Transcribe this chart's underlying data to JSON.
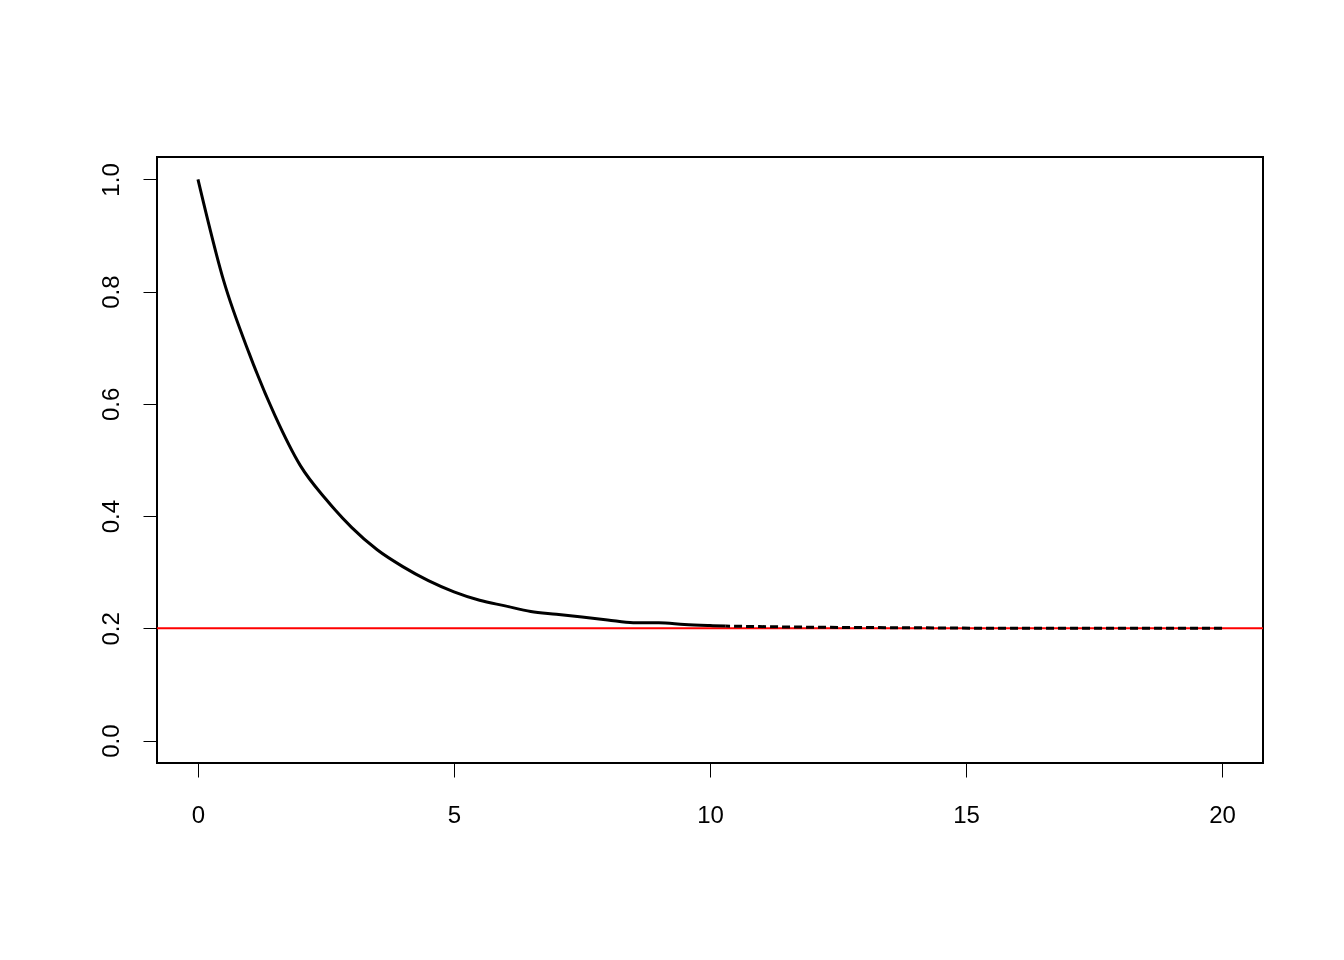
{
  "chart_data": {
    "type": "line",
    "xlim": [
      -0.8,
      20.8
    ],
    "ylim": [
      -0.04,
      1.04
    ],
    "xticks": [
      0,
      5,
      10,
      15,
      20
    ],
    "yticks": [
      {
        "value": 0,
        "label": "0.0"
      },
      0.2,
      0.4,
      0.6,
      0.8,
      {
        "value": 1,
        "label": "1.0"
      }
    ],
    "series": [
      {
        "color": "#000000",
        "line_style": "solid",
        "x": [
          0,
          0.5,
          1,
          1.5,
          2,
          2.5,
          3,
          3.5,
          4,
          4.5,
          5,
          5.5,
          6,
          6.5,
          7,
          7.5,
          8,
          8.5,
          9,
          9.5,
          10,
          10.3
        ],
        "values": [
          1.0,
          0.82,
          0.69,
          0.58,
          0.49,
          0.43,
          0.38,
          0.34,
          0.31,
          0.285,
          0.265,
          0.25,
          0.24,
          0.23,
          0.225,
          0.22,
          0.215,
          0.21,
          0.21,
          0.207,
          0.205,
          0.204
        ]
      },
      {
        "color": "#000000",
        "line_style": "dashed",
        "x": [
          10.3,
          12,
          14,
          16,
          18,
          20
        ],
        "values": [
          0.204,
          0.202,
          0.201,
          0.2,
          0.2,
          0.2
        ]
      }
    ],
    "ref_lines": [
      {
        "axis": "y",
        "value": 0.2,
        "color": "#ff0000"
      }
    ]
  }
}
